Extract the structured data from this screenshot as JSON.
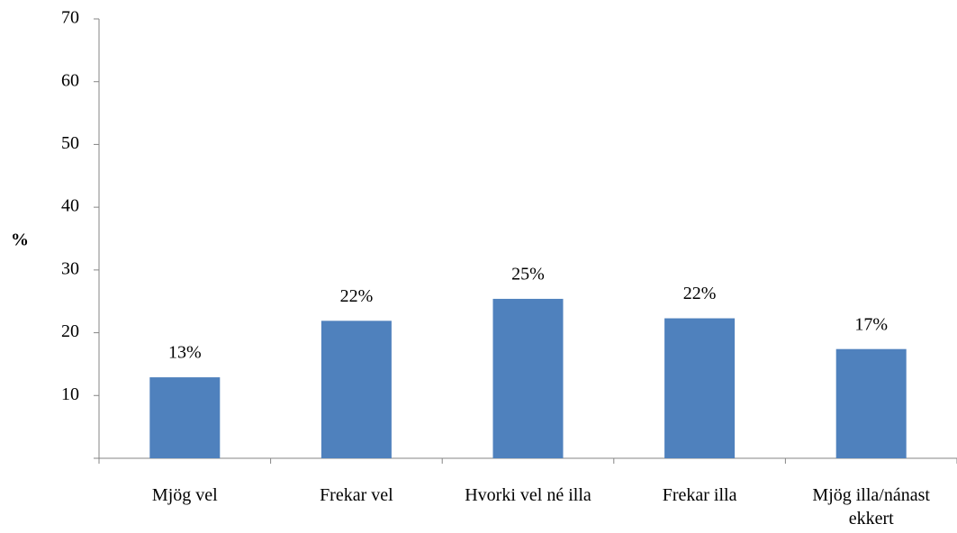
{
  "chart_data": {
    "type": "bar",
    "y_label": "%",
    "categories": [
      "Mjög vel",
      "Frekar vel",
      "Hvorki vel né illa",
      "Frekar illa",
      "Mjög illa/nánast ekkert"
    ],
    "values": [
      12.9,
      21.9,
      25.4,
      22.3,
      17.4
    ],
    "value_labels": [
      "13%",
      "22%",
      "25%",
      "22%",
      "17%"
    ],
    "color": "#4f81bd",
    "ylim": [
      0,
      70
    ],
    "yticks": [
      10,
      20,
      30,
      40,
      50,
      60,
      70
    ]
  }
}
